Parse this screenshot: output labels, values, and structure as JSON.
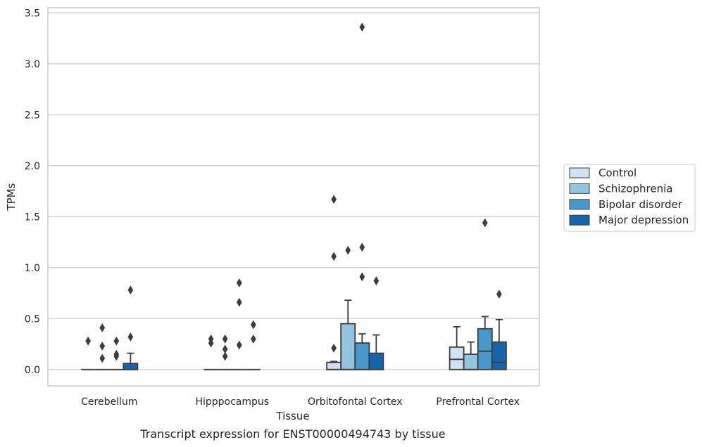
{
  "chart_data": {
    "type": "box",
    "caption": "Transcript expression for ENST00000494743 by tissue",
    "xlabel": "Tissue",
    "ylabel": "TPMs",
    "ylim": [
      -0.16,
      3.55
    ],
    "yticks": [
      "0.0",
      "0.5",
      "1.0",
      "1.5",
      "2.0",
      "2.5",
      "3.0",
      "3.5"
    ],
    "ytick_values": [
      0,
      0.5,
      1.0,
      1.5,
      2.0,
      2.5,
      3.0,
      3.5
    ],
    "grid": "horizontal",
    "legend_position": "right",
    "categories": [
      "Cerebellum",
      "Hipppocampus",
      "Orbitofontal Cortex",
      "Prefrontal Cortex"
    ],
    "series": [
      {
        "name": "Control",
        "color": "#d0e1f2",
        "boxes": [
          {
            "q1": 0,
            "median": 0,
            "q3": 0,
            "whislo": 0,
            "whishi": 0,
            "fliers": [
              0.28
            ]
          },
          {
            "q1": 0,
            "median": 0,
            "q3": 0,
            "whislo": 0,
            "whishi": 0,
            "fliers": [
              0.26,
              0.3
            ]
          },
          {
            "q1": 0,
            "median": 0,
            "q3": 0.07,
            "whislo": 0,
            "whishi": 0.08,
            "fliers": [
              0.21,
              1.11,
              1.67
            ]
          },
          {
            "q1": 0,
            "median": 0.1,
            "q3": 0.22,
            "whislo": 0,
            "whishi": 0.42,
            "fliers": []
          }
        ]
      },
      {
        "name": "Schizophrenia",
        "color": "#94c4df",
        "boxes": [
          {
            "q1": 0,
            "median": 0,
            "q3": 0,
            "whislo": 0,
            "whishi": 0,
            "fliers": [
              0.11,
              0.23,
              0.41
            ]
          },
          {
            "q1": 0,
            "median": 0,
            "q3": 0,
            "whislo": 0,
            "whishi": 0,
            "fliers": [
              0.13,
              0.2,
              0.3
            ]
          },
          {
            "q1": 0,
            "median": 0,
            "q3": 0.45,
            "whislo": 0,
            "whishi": 0.68,
            "fliers": [
              1.17
            ]
          },
          {
            "q1": 0,
            "median": 0,
            "q3": 0.15,
            "whislo": 0,
            "whishi": 0.27,
            "fliers": []
          }
        ]
      },
      {
        "name": "Bipolar disorder",
        "color": "#4a98c9",
        "boxes": [
          {
            "q1": 0,
            "median": 0,
            "q3": 0,
            "whislo": 0,
            "whishi": 0,
            "fliers": [
              0.13,
              0.15,
              0.28
            ]
          },
          {
            "q1": 0,
            "median": 0,
            "q3": 0,
            "whislo": 0,
            "whishi": 0,
            "fliers": [
              0.24,
              0.66,
              0.85
            ]
          },
          {
            "q1": 0,
            "median": 0,
            "q3": 0.26,
            "whislo": 0,
            "whishi": 0.35,
            "fliers": [
              0.91,
              1.2,
              3.36
            ]
          },
          {
            "q1": 0,
            "median": 0.18,
            "q3": 0.4,
            "whislo": 0,
            "whishi": 0.52,
            "fliers": [
              1.44
            ]
          }
        ]
      },
      {
        "name": "Major depression",
        "color": "#1764ab",
        "boxes": [
          {
            "q1": 0,
            "median": 0,
            "q3": 0.06,
            "whislo": 0,
            "whishi": 0.16,
            "fliers": [
              0.32,
              0.78
            ]
          },
          {
            "q1": 0,
            "median": 0,
            "q3": 0,
            "whislo": 0,
            "whishi": 0,
            "fliers": [
              0.3,
              0.44
            ]
          },
          {
            "q1": 0,
            "median": 0,
            "q3": 0.16,
            "whislo": 0,
            "whishi": 0.34,
            "fliers": [
              0.87
            ]
          },
          {
            "q1": 0,
            "median": 0.07,
            "q3": 0.27,
            "whislo": 0,
            "whishi": 0.49,
            "fliers": [
              0.74
            ]
          }
        ]
      }
    ]
  }
}
